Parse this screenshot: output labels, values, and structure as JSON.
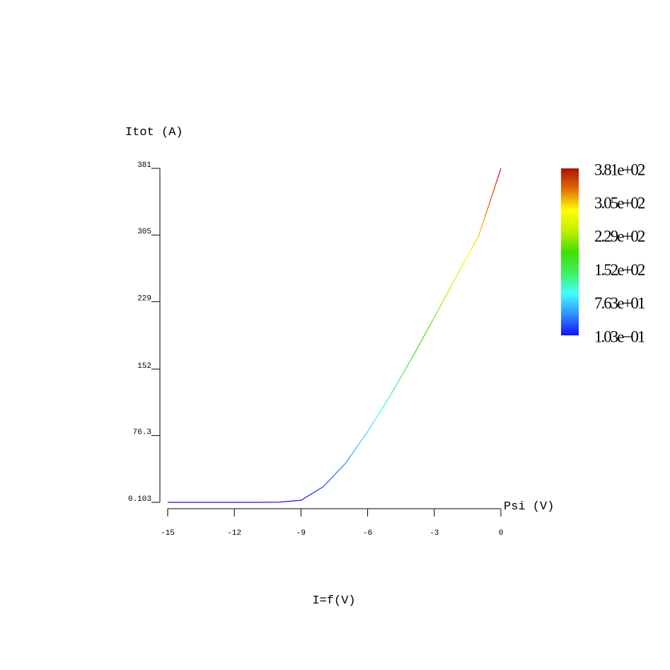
{
  "chart_data": {
    "type": "line",
    "title": "I=f(V)",
    "x_label": "Psi (V)",
    "y_label": "Itot (A)",
    "x": [
      -15,
      -14,
      -13,
      -12,
      -11,
      -10,
      -9,
      -8,
      -7,
      -6,
      -5,
      -4,
      -3,
      -2,
      -1,
      0
    ],
    "series": [
      {
        "name": "Itot",
        "values": [
          0.103,
          0.103,
          0.103,
          0.103,
          0.103,
          0.3,
          2.4,
          17.8,
          44.5,
          80.8,
          121,
          165,
          211,
          258,
          304,
          381
        ]
      }
    ],
    "xlim": [
      -15,
      0
    ],
    "xticks": [
      -15,
      -12,
      -9,
      -6,
      -3,
      0
    ],
    "ylim": [
      0.103,
      381
    ],
    "yticks": [
      0.103,
      76.3,
      152,
      229,
      305,
      381
    ],
    "colormap": [
      "#1010ff",
      "#3090ff",
      "#40ffff",
      "#40f060",
      "#40e000",
      "#c0f000",
      "#ffff00",
      "#e07000",
      "#b01000"
    ],
    "colorbar_ticks": [
      {
        "value": 381,
        "label": "3.81e+02"
      },
      {
        "value": 305,
        "label": "3.05e+02"
      },
      {
        "value": 229,
        "label": "2.29e+02"
      },
      {
        "value": 152,
        "label": "1.52e+02"
      },
      {
        "value": 76.3,
        "label": "7.63e+01"
      },
      {
        "value": 0.103,
        "label": "1.03e−01"
      }
    ]
  }
}
